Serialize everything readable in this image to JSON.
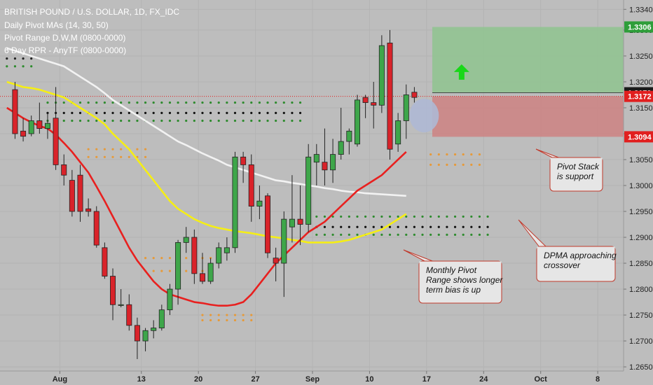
{
  "legend": {
    "title": "BRITISH POUND / U.S. DOLLAR, 1D, FX_IDC",
    "line2": "Daily Pivot MAs (14, 30, 50)",
    "line3": "Pivot Range D,W,M (0800-0000)",
    "line4": "6 Day RPR - AnyTF (0800-0000)"
  },
  "annotations": [
    {
      "id": "pivot-stack",
      "lines": [
        "Pivot Stack",
        "is support"
      ]
    },
    {
      "id": "dpma",
      "lines": [
        "DPMA approaching",
        "crossover"
      ]
    },
    {
      "id": "monthly-pivot",
      "lines": [
        "Monthly Pivot",
        "Range shows longer",
        "term bias is up"
      ]
    }
  ],
  "price_tags": [
    {
      "value": "1.3306",
      "price": 1.3306,
      "bg": "#2e9e3a",
      "fg": "#ffffff"
    },
    {
      "value": "1.3179",
      "price": 1.3179,
      "bg": "#1a1a1a",
      "fg": "#ffffff"
    },
    {
      "value": "1.3172",
      "price": 1.3172,
      "bg": "#e11f1f",
      "fg": "#ffffff"
    },
    {
      "value": "1.3094",
      "price": 1.3094,
      "bg": "#e11f1f",
      "fg": "#ffffff"
    }
  ],
  "colors": {
    "background": "#bdbdbd",
    "up_candle": "#3ea64a",
    "down_candle": "#d9232a",
    "ma_fast": "#e8201f",
    "ma_mid": "#f5ee15",
    "ma_slow": "#f2f2f2",
    "grid": "#b3b3b3",
    "target_box": "#8fc48f",
    "stop_box": "#cc8585"
  },
  "chart_data": {
    "type": "candlestick",
    "symbol": "GBPUSD",
    "timeframe": "1D",
    "y_ticks": [
      1.265,
      1.27,
      1.275,
      1.28,
      1.285,
      1.29,
      1.295,
      1.3,
      1.305,
      1.31,
      1.315,
      1.32,
      1.325,
      1.33,
      1.334
    ],
    "y_tick_labels": [
      "1.2650",
      "1.2700",
      "1.2750",
      "1.2800",
      "1.2850",
      "1.2900",
      "1.2950",
      "1.3000",
      "1.3050",
      "1.3100",
      "1.3150",
      "1.3200",
      "1.3250",
      "1.3300",
      "1.3340"
    ],
    "ylim": [
      1.2642,
      1.3358
    ],
    "x_ticks": [
      {
        "label": "Aug",
        "bar": 6.5
      },
      {
        "label": "13",
        "bar": 16.5
      },
      {
        "label": "20",
        "bar": 23.5
      },
      {
        "label": "27",
        "bar": 30.5
      },
      {
        "label": "Sep",
        "bar": 37.5
      },
      {
        "label": "10",
        "bar": 44.5
      },
      {
        "label": "17",
        "bar": 51.5
      },
      {
        "label": "24",
        "bar": 58.5
      },
      {
        "label": "Oct",
        "bar": 65.5
      },
      {
        "label": "8",
        "bar": 72.5
      }
    ],
    "bars_total": 76,
    "candles": [
      {
        "o": 1.3185,
        "h": 1.32,
        "l": 1.309,
        "c": 1.31
      },
      {
        "o": 1.3105,
        "h": 1.313,
        "l": 1.3085,
        "c": 1.3095
      },
      {
        "o": 1.31,
        "h": 1.3135,
        "l": 1.3095,
        "c": 1.3125
      },
      {
        "o": 1.3125,
        "h": 1.316,
        "l": 1.31,
        "c": 1.311
      },
      {
        "o": 1.311,
        "h": 1.314,
        "l": 1.309,
        "c": 1.312
      },
      {
        "o": 1.313,
        "h": 1.319,
        "l": 1.303,
        "c": 1.304
      },
      {
        "o": 1.304,
        "h": 1.306,
        "l": 1.3,
        "c": 1.302
      },
      {
        "o": 1.301,
        "h": 1.303,
        "l": 1.294,
        "c": 1.295
      },
      {
        "o": 1.302,
        "h": 1.304,
        "l": 1.293,
        "c": 1.295
      },
      {
        "o": 1.2955,
        "h": 1.2975,
        "l": 1.294,
        "c": 1.295
      },
      {
        "o": 1.295,
        "h": 1.296,
        "l": 1.288,
        "c": 1.2885
      },
      {
        "o": 1.288,
        "h": 1.289,
        "l": 1.282,
        "c": 1.2825
      },
      {
        "o": 1.2825,
        "h": 1.284,
        "l": 1.274,
        "c": 1.277
      },
      {
        "o": 1.277,
        "h": 1.28,
        "l": 1.2765,
        "c": 1.277
      },
      {
        "o": 1.277,
        "h": 1.279,
        "l": 1.272,
        "c": 1.273
      },
      {
        "o": 1.273,
        "h": 1.2745,
        "l": 1.2665,
        "c": 1.27
      },
      {
        "o": 1.27,
        "h": 1.2725,
        "l": 1.268,
        "c": 1.272
      },
      {
        "o": 1.272,
        "h": 1.274,
        "l": 1.2705,
        "c": 1.2725
      },
      {
        "o": 1.2725,
        "h": 1.277,
        "l": 1.272,
        "c": 1.276
      },
      {
        "o": 1.276,
        "h": 1.281,
        "l": 1.275,
        "c": 1.28
      },
      {
        "o": 1.28,
        "h": 1.2895,
        "l": 1.277,
        "c": 1.289
      },
      {
        "o": 1.289,
        "h": 1.292,
        "l": 1.287,
        "c": 1.29
      },
      {
        "o": 1.29,
        "h": 1.2915,
        "l": 1.281,
        "c": 1.283
      },
      {
        "o": 1.283,
        "h": 1.287,
        "l": 1.281,
        "c": 1.2815
      },
      {
        "o": 1.2815,
        "h": 1.286,
        "l": 1.281,
        "c": 1.285
      },
      {
        "o": 1.285,
        "h": 1.289,
        "l": 1.284,
        "c": 1.288
      },
      {
        "o": 1.287,
        "h": 1.29,
        "l": 1.2855,
        "c": 1.288
      },
      {
        "o": 1.288,
        "h": 1.3065,
        "l": 1.287,
        "c": 1.3055
      },
      {
        "o": 1.3055,
        "h": 1.3065,
        "l": 1.3005,
        "c": 1.304
      },
      {
        "o": 1.304,
        "h": 1.306,
        "l": 1.293,
        "c": 1.296
      },
      {
        "o": 1.296,
        "h": 1.3,
        "l": 1.2935,
        "c": 1.297
      },
      {
        "o": 1.298,
        "h": 1.2985,
        "l": 1.286,
        "c": 1.287
      },
      {
        "o": 1.286,
        "h": 1.288,
        "l": 1.2815,
        "c": 1.285
      },
      {
        "o": 1.285,
        "h": 1.295,
        "l": 1.2785,
        "c": 1.2935
      },
      {
        "o": 1.292,
        "h": 1.302,
        "l": 1.289,
        "c": 1.2935
      },
      {
        "o": 1.2935,
        "h": 1.3,
        "l": 1.2885,
        "c": 1.2925
      },
      {
        "o": 1.2925,
        "h": 1.308,
        "l": 1.291,
        "c": 1.3055
      },
      {
        "o": 1.3045,
        "h": 1.308,
        "l": 1.3,
        "c": 1.306
      },
      {
        "o": 1.3045,
        "h": 1.311,
        "l": 1.3,
        "c": 1.303
      },
      {
        "o": 1.303,
        "h": 1.309,
        "l": 1.3005,
        "c": 1.306
      },
      {
        "o": 1.306,
        "h": 1.315,
        "l": 1.305,
        "c": 1.3085
      },
      {
        "o": 1.3085,
        "h": 1.311,
        "l": 1.306,
        "c": 1.3105
      },
      {
        "o": 1.308,
        "h": 1.3175,
        "l": 1.3075,
        "c": 1.3165
      },
      {
        "o": 1.317,
        "h": 1.3175,
        "l": 1.313,
        "c": 1.316
      },
      {
        "o": 1.316,
        "h": 1.32,
        "l": 1.311,
        "c": 1.3155
      },
      {
        "o": 1.3155,
        "h": 1.329,
        "l": 1.314,
        "c": 1.327
      },
      {
        "o": 1.3275,
        "h": 1.33,
        "l": 1.305,
        "c": 1.307
      },
      {
        "o": 1.308,
        "h": 1.314,
        "l": 1.3065,
        "c": 1.3125
      },
      {
        "o": 1.3125,
        "h": 1.3195,
        "l": 1.309,
        "c": 1.3175
      },
      {
        "o": 1.318,
        "h": 1.319,
        "l": 1.316,
        "c": 1.317
      }
    ],
    "candle_start_bar": 1,
    "ma_series": [
      {
        "name": "",
        "period": 14,
        "color": "#e8201f",
        "values": [
          1.315,
          1.314,
          1.313,
          1.3122,
          1.3115,
          1.311,
          1.3098,
          1.3082,
          1.3065,
          1.3045,
          1.3025,
          1.2998,
          1.297,
          1.294,
          1.291,
          1.288,
          1.2855,
          1.2835,
          1.2815,
          1.28,
          1.279,
          1.2785,
          1.278,
          1.2775,
          1.2773,
          1.277,
          1.2768,
          1.2768,
          1.277,
          1.2775,
          1.279,
          1.281,
          1.283,
          1.285,
          1.2865,
          1.288,
          1.2895,
          1.291,
          1.292,
          1.293,
          1.2945,
          1.296,
          1.2975,
          1.299,
          1.3,
          1.301,
          1.302,
          1.3035,
          1.305,
          1.3065
        ]
      },
      {
        "name": "",
        "period": 30,
        "color": "#f5ee15",
        "values": [
          1.32,
          1.3195,
          1.319,
          1.3188,
          1.3185,
          1.318,
          1.3175,
          1.317,
          1.316,
          1.315,
          1.314,
          1.313,
          1.3118,
          1.31,
          1.3085,
          1.307,
          1.305,
          1.303,
          1.301,
          1.299,
          1.297,
          1.2955,
          1.2945,
          1.2935,
          1.2928,
          1.2922,
          1.2918,
          1.2915,
          1.2912,
          1.291,
          1.2908,
          1.2905,
          1.2902,
          1.29,
          1.2898,
          1.2895,
          1.2893,
          1.289,
          1.289,
          1.289,
          1.289,
          1.2892,
          1.2895,
          1.29,
          1.2905,
          1.291,
          1.2915,
          1.2925,
          1.2935,
          1.2945
        ]
      },
      {
        "name": "",
        "period": 50,
        "color": "#f2f2f2",
        "values": [
          1.3265,
          1.326,
          1.3255,
          1.325,
          1.3245,
          1.324,
          1.3235,
          1.323,
          1.322,
          1.321,
          1.32,
          1.319,
          1.3178,
          1.3165,
          1.3155,
          1.3145,
          1.3135,
          1.3125,
          1.3115,
          1.3105,
          1.3095,
          1.3085,
          1.3078,
          1.307,
          1.3062,
          1.3055,
          1.3048,
          1.304,
          1.3035,
          1.303,
          1.3025,
          1.302,
          1.3015,
          1.301,
          1.3008,
          1.3005,
          1.3003,
          1.3,
          1.2998,
          1.2995,
          1.2993,
          1.299,
          1.2988,
          1.2987,
          1.2985,
          1.2984,
          1.2983,
          1.2982,
          1.2981,
          1.298
        ]
      }
    ],
    "horizontal_line": {
      "price": 1.3172,
      "style": "dotted",
      "color": "#e11f1f"
    },
    "target_zone": {
      "top": 1.3306,
      "bottom": 1.3179,
      "start_bar": 52.2
    },
    "stop_zone": {
      "top": 1.3172,
      "bottom": 1.3094,
      "start_bar": 52.2
    },
    "arrow_up": {
      "bar": 55.8,
      "price": 1.3215,
      "color": "#19d819"
    }
  }
}
